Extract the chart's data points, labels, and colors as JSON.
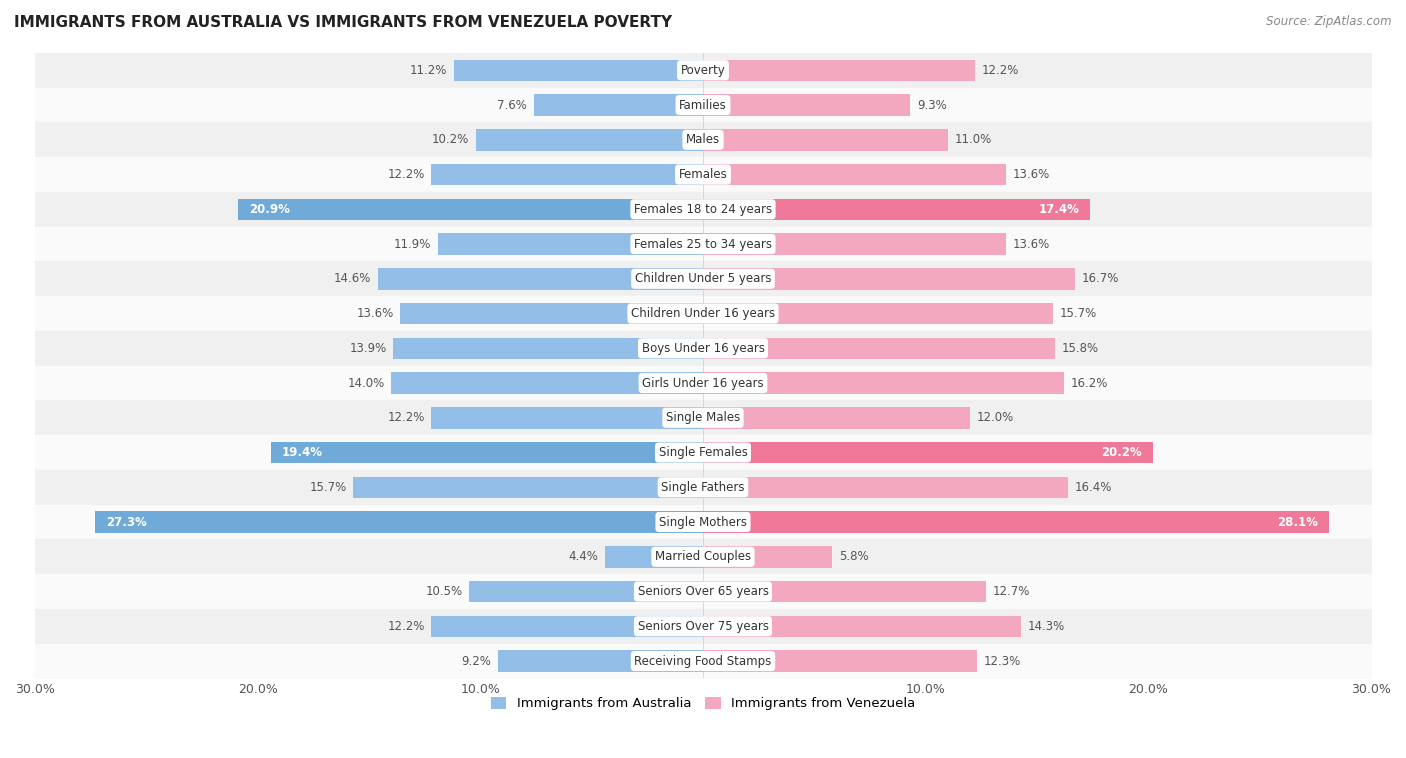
{
  "title": "IMMIGRANTS FROM AUSTRALIA VS IMMIGRANTS FROM VENEZUELA POVERTY",
  "source": "Source: ZipAtlas.com",
  "categories": [
    "Poverty",
    "Families",
    "Males",
    "Females",
    "Females 18 to 24 years",
    "Females 25 to 34 years",
    "Children Under 5 years",
    "Children Under 16 years",
    "Boys Under 16 years",
    "Girls Under 16 years",
    "Single Males",
    "Single Females",
    "Single Fathers",
    "Single Mothers",
    "Married Couples",
    "Seniors Over 65 years",
    "Seniors Over 75 years",
    "Receiving Food Stamps"
  ],
  "australia_values": [
    11.2,
    7.6,
    10.2,
    12.2,
    20.9,
    11.9,
    14.6,
    13.6,
    13.9,
    14.0,
    12.2,
    19.4,
    15.7,
    27.3,
    4.4,
    10.5,
    12.2,
    9.2
  ],
  "venezuela_values": [
    12.2,
    9.3,
    11.0,
    13.6,
    17.4,
    13.6,
    16.7,
    15.7,
    15.8,
    16.2,
    12.0,
    20.2,
    16.4,
    28.1,
    5.8,
    12.7,
    14.3,
    12.3
  ],
  "australia_color": "#92bee8",
  "venezuela_color": "#f4a8c0",
  "australia_highlight_color": "#6faad8",
  "venezuela_highlight_color": "#f07898",
  "highlight_rows": [
    4,
    11,
    13
  ],
  "axis_max": 30.0,
  "background_color": "#ffffff",
  "row_colors_even": "#f0f0f0",
  "row_colors_odd": "#fafafa",
  "legend_australia": "Immigrants from Australia",
  "legend_venezuela": "Immigrants from Venezuela",
  "bar_height": 0.62,
  "label_fontsize": 8.5,
  "category_fontsize": 8.5
}
